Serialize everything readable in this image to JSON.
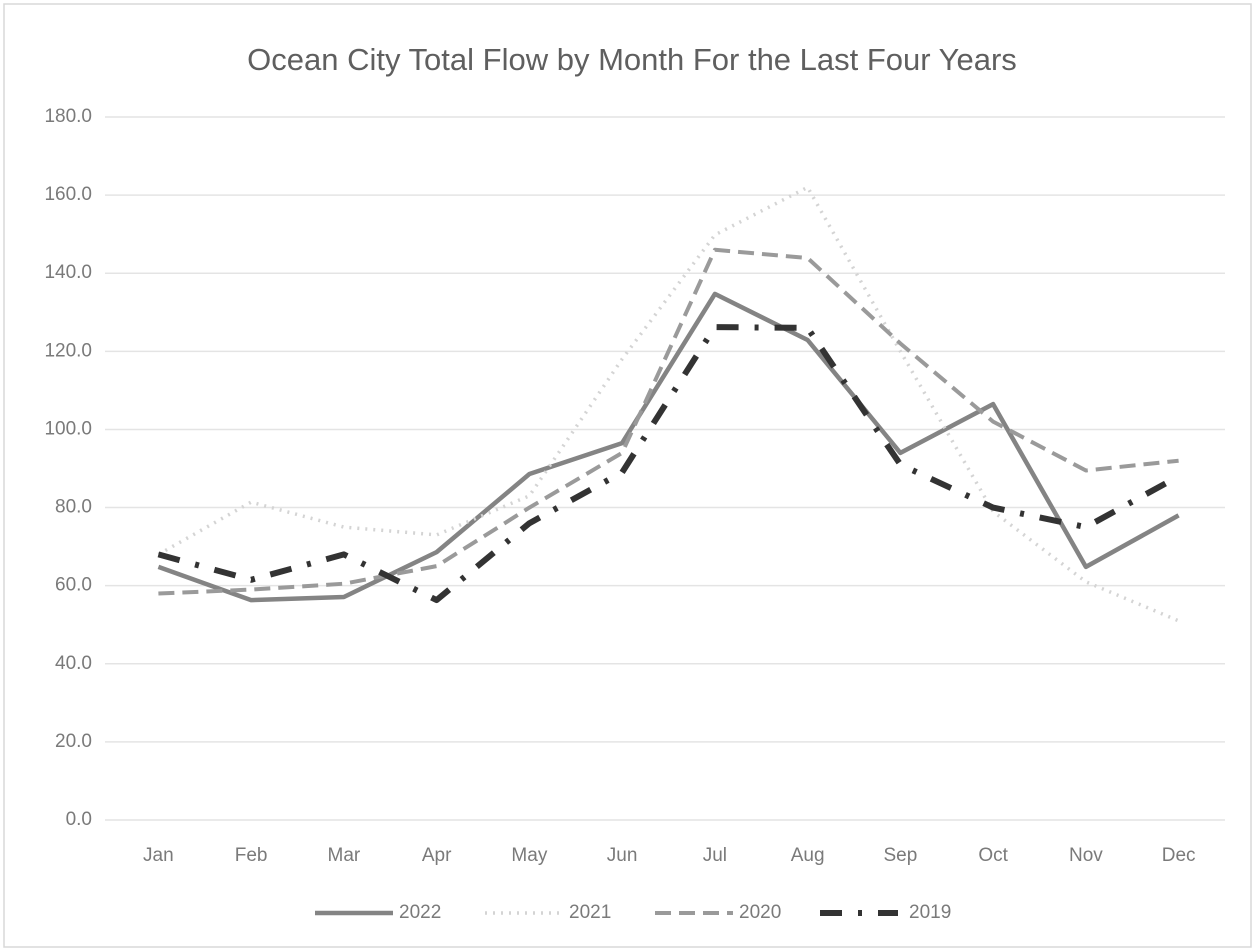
{
  "chart_data": {
    "type": "line",
    "title": "Ocean City Total Flow by Month For the Last Four Years",
    "categories": [
      "Jan",
      "Feb",
      "Mar",
      "Apr",
      "May",
      "Jun",
      "Jul",
      "Aug",
      "Sep",
      "Oct",
      "Nov",
      "Dec"
    ],
    "series": [
      {
        "name": "2022",
        "color": "#848484",
        "dash": "solid",
        "values": [
          64.8,
          56.3,
          57.1,
          68.6,
          88.6,
          96.5,
          134.7,
          122.9,
          94.0,
          106.5,
          64.8,
          78.0
        ]
      },
      {
        "name": "2021",
        "color": "#d4d4d4",
        "dash": "dotted",
        "values": [
          68.0,
          81.4,
          75.0,
          73.0,
          83.0,
          118.0,
          149.8,
          162.0,
          120.0,
          79.0,
          61.0,
          51.0
        ]
      },
      {
        "name": "2020",
        "color": "#9a9a9a",
        "dash": "dashed",
        "values": [
          58.0,
          59.0,
          60.5,
          65.0,
          80.0,
          94.0,
          146.0,
          143.9,
          122.0,
          102.0,
          89.5,
          92.0
        ]
      },
      {
        "name": "2019",
        "color": "#333333",
        "dash": "dashdot",
        "values": [
          68.0,
          61.5,
          68.0,
          56.3,
          76.0,
          89.0,
          126.2,
          126.0,
          91.0,
          80.0,
          75.0,
          88.0
        ]
      }
    ],
    "ylim": [
      0,
      180
    ],
    "yticks": [
      {
        "value": 0,
        "label": "0.0"
      },
      {
        "value": 20,
        "label": "20.0"
      },
      {
        "value": 40,
        "label": "40.0"
      },
      {
        "value": 60,
        "label": "60.0"
      },
      {
        "value": 80,
        "label": "80.0"
      },
      {
        "value": 100,
        "label": "100.0"
      },
      {
        "value": 120,
        "label": "120.0"
      },
      {
        "value": 140,
        "label": "140.0"
      },
      {
        "value": 160,
        "label": "160.0"
      },
      {
        "value": 180,
        "label": "180.0"
      }
    ],
    "grid": true,
    "legend": "bottom"
  }
}
